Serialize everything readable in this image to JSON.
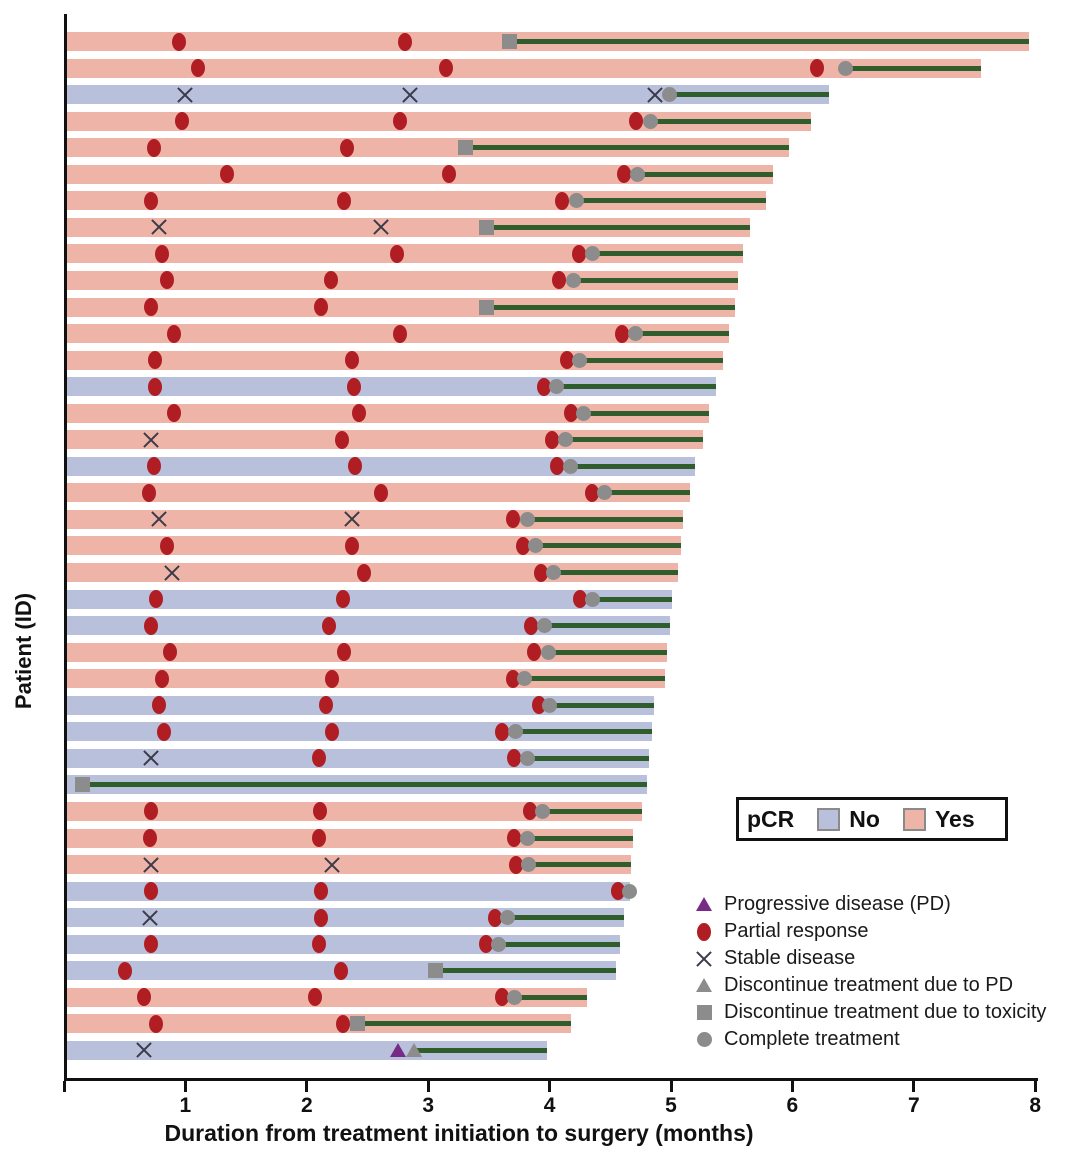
{
  "chart_data": {
    "type": "bar",
    "variant": "swimmer-plot",
    "title": "",
    "xlabel": "Duration from treatment initiation to surgery (months)",
    "ylabel": "Patient (ID)",
    "xlim": [
      0,
      8
    ],
    "xticks": [
      "1",
      "2",
      "3",
      "4",
      "5",
      "6",
      "7",
      "8"
    ],
    "grid": false,
    "pcr_legend": {
      "title": "pCR",
      "no_label": "No",
      "yes_label": "Yes"
    },
    "marker_legend": [
      {
        "type": "pd",
        "label": "Progressive disease (PD)"
      },
      {
        "type": "pr",
        "label": "Partial response"
      },
      {
        "type": "sd",
        "label": "Stable disease"
      },
      {
        "type": "dpd",
        "label": "Discontinue treatment due to PD"
      },
      {
        "type": "dtox",
        "label": "Discontinue treatment due to toxicity"
      },
      {
        "type": "ct",
        "label": "Complete treatment"
      }
    ],
    "marker_types": {
      "pd": "progressive-disease-marker",
      "pr": "partial-response-marker",
      "sd": "stable-disease-marker",
      "dpd": "discontinue-pd-marker",
      "dtox": "discontinue-toxicity-marker",
      "ct": "complete-treatment-marker"
    },
    "colors": {
      "yes": "#efb4a8",
      "no": "#b9c0dc",
      "red": "#b01e24",
      "green": "#2f5e2c",
      "gray": "#8c8c8c",
      "purple": "#762c86",
      "xcol": "#3a3a48",
      "axis": "#111111"
    },
    "rows": [
      {
        "pcr": "Yes",
        "end": 7.95,
        "line_start": 3.67,
        "markers": [
          [
            "pr",
            0.95
          ],
          [
            "pr",
            2.81
          ],
          [
            "dtox",
            3.67
          ]
        ]
      },
      {
        "pcr": "Yes",
        "end": 7.55,
        "line_start": 6.44,
        "markers": [
          [
            "pr",
            1.1
          ],
          [
            "pr",
            3.15
          ],
          [
            "pr",
            6.2
          ],
          [
            "ct",
            6.44
          ]
        ]
      },
      {
        "pcr": "No",
        "end": 6.3,
        "line_start": 4.99,
        "markers": [
          [
            "sd",
            1.0
          ],
          [
            "sd",
            2.85
          ],
          [
            "sd",
            4.87
          ],
          [
            "ct",
            4.99
          ]
        ]
      },
      {
        "pcr": "Yes",
        "end": 6.15,
        "line_start": 4.83,
        "markers": [
          [
            "pr",
            0.97
          ],
          [
            "pr",
            2.77
          ],
          [
            "pr",
            4.71
          ],
          [
            "ct",
            4.83
          ]
        ]
      },
      {
        "pcr": "Yes",
        "end": 5.97,
        "line_start": 3.31,
        "markers": [
          [
            "pr",
            0.74
          ],
          [
            "pr",
            2.33
          ],
          [
            "dtox",
            3.31
          ]
        ]
      },
      {
        "pcr": "Yes",
        "end": 5.84,
        "line_start": 4.72,
        "markers": [
          [
            "pr",
            1.34
          ],
          [
            "pr",
            3.17
          ],
          [
            "pr",
            4.61
          ],
          [
            "ct",
            4.72
          ]
        ]
      },
      {
        "pcr": "Yes",
        "end": 5.78,
        "line_start": 4.22,
        "markers": [
          [
            "pr",
            0.72
          ],
          [
            "pr",
            2.31
          ],
          [
            "pr",
            4.1
          ],
          [
            "ct",
            4.22
          ]
        ]
      },
      {
        "pcr": "Yes",
        "end": 5.65,
        "line_start": 3.48,
        "markers": [
          [
            "sd",
            0.78
          ],
          [
            "sd",
            2.61
          ],
          [
            "dtox",
            3.48
          ]
        ]
      },
      {
        "pcr": "Yes",
        "end": 5.59,
        "line_start": 4.35,
        "markers": [
          [
            "pr",
            0.81
          ],
          [
            "pr",
            2.74
          ],
          [
            "pr",
            4.24
          ],
          [
            "ct",
            4.35
          ]
        ]
      },
      {
        "pcr": "Yes",
        "end": 5.55,
        "line_start": 4.2,
        "markers": [
          [
            "pr",
            0.85
          ],
          [
            "pr",
            2.2
          ],
          [
            "pr",
            4.08
          ],
          [
            "ct",
            4.2
          ]
        ]
      },
      {
        "pcr": "Yes",
        "end": 5.53,
        "line_start": 3.48,
        "markers": [
          [
            "pr",
            0.72
          ],
          [
            "pr",
            2.12
          ],
          [
            "dtox",
            3.48
          ]
        ]
      },
      {
        "pcr": "Yes",
        "end": 5.48,
        "line_start": 4.71,
        "markers": [
          [
            "pr",
            0.91
          ],
          [
            "pr",
            2.77
          ],
          [
            "pr",
            4.6
          ],
          [
            "ct",
            4.71
          ]
        ]
      },
      {
        "pcr": "Yes",
        "end": 5.43,
        "line_start": 4.25,
        "markers": [
          [
            "pr",
            0.75
          ],
          [
            "pr",
            2.37
          ],
          [
            "pr",
            4.14
          ],
          [
            "ct",
            4.25
          ]
        ]
      },
      {
        "pcr": "No",
        "end": 5.37,
        "line_start": 4.06,
        "markers": [
          [
            "pr",
            0.75
          ],
          [
            "pr",
            2.39
          ],
          [
            "pr",
            3.95
          ],
          [
            "ct",
            4.06
          ]
        ]
      },
      {
        "pcr": "Yes",
        "end": 5.31,
        "line_start": 4.28,
        "markers": [
          [
            "pr",
            0.91
          ],
          [
            "pr",
            2.43
          ],
          [
            "pr",
            4.18
          ],
          [
            "ct",
            4.28
          ]
        ]
      },
      {
        "pcr": "Yes",
        "end": 5.26,
        "line_start": 4.13,
        "markers": [
          [
            "sd",
            0.72
          ],
          [
            "pr",
            2.29
          ],
          [
            "pr",
            4.02
          ],
          [
            "ct",
            4.13
          ]
        ]
      },
      {
        "pcr": "No",
        "end": 5.2,
        "line_start": 4.17,
        "markers": [
          [
            "pr",
            0.74
          ],
          [
            "pr",
            2.4
          ],
          [
            "pr",
            4.06
          ],
          [
            "ct",
            4.17
          ]
        ]
      },
      {
        "pcr": "Yes",
        "end": 5.16,
        "line_start": 4.45,
        "markers": [
          [
            "pr",
            0.7
          ],
          [
            "pr",
            2.61
          ],
          [
            "pr",
            4.35
          ],
          [
            "ct",
            4.45
          ]
        ]
      },
      {
        "pcr": "Yes",
        "end": 5.1,
        "line_start": 3.82,
        "markers": [
          [
            "sd",
            0.78
          ],
          [
            "sd",
            2.37
          ],
          [
            "pr",
            3.7
          ],
          [
            "ct",
            3.82
          ]
        ]
      },
      {
        "pcr": "Yes",
        "end": 5.08,
        "line_start": 3.88,
        "markers": [
          [
            "pr",
            0.85
          ],
          [
            "pr",
            2.37
          ],
          [
            "pr",
            3.78
          ],
          [
            "ct",
            3.88
          ]
        ]
      },
      {
        "pcr": "Yes",
        "end": 5.06,
        "line_start": 4.03,
        "markers": [
          [
            "sd",
            0.89
          ],
          [
            "pr",
            2.47
          ],
          [
            "pr",
            3.93
          ],
          [
            "ct",
            4.03
          ]
        ]
      },
      {
        "pcr": "No",
        "end": 5.01,
        "line_start": 4.35,
        "markers": [
          [
            "pr",
            0.76
          ],
          [
            "pr",
            2.3
          ],
          [
            "pr",
            4.25
          ],
          [
            "ct",
            4.35
          ]
        ]
      },
      {
        "pcr": "No",
        "end": 4.99,
        "line_start": 3.96,
        "markers": [
          [
            "pr",
            0.72
          ],
          [
            "pr",
            2.18
          ],
          [
            "pr",
            3.85
          ],
          [
            "ct",
            3.96
          ]
        ]
      },
      {
        "pcr": "Yes",
        "end": 4.97,
        "line_start": 3.99,
        "markers": [
          [
            "pr",
            0.87
          ],
          [
            "pr",
            2.31
          ],
          [
            "pr",
            3.87
          ],
          [
            "ct",
            3.99
          ]
        ]
      },
      {
        "pcr": "Yes",
        "end": 4.95,
        "line_start": 3.79,
        "markers": [
          [
            "pr",
            0.81
          ],
          [
            "pr",
            2.21
          ],
          [
            "pr",
            3.7
          ],
          [
            "ct",
            3.79
          ]
        ]
      },
      {
        "pcr": "No",
        "end": 4.86,
        "line_start": 4.0,
        "markers": [
          [
            "pr",
            0.78
          ],
          [
            "pr",
            2.16
          ],
          [
            "pr",
            3.91
          ],
          [
            "ct",
            4.0
          ]
        ]
      },
      {
        "pcr": "No",
        "end": 4.84,
        "line_start": 3.72,
        "markers": [
          [
            "pr",
            0.82
          ],
          [
            "pr",
            2.21
          ],
          [
            "pr",
            3.61
          ],
          [
            "ct",
            3.72
          ]
        ]
      },
      {
        "pcr": "No",
        "end": 4.82,
        "line_start": 3.82,
        "markers": [
          [
            "sd",
            0.72
          ],
          [
            "pr",
            2.1
          ],
          [
            "pr",
            3.71
          ],
          [
            "ct",
            3.82
          ]
        ]
      },
      {
        "pcr": "No",
        "end": 4.8,
        "line_start": 0.15,
        "markers": [
          [
            "dtox",
            0.15
          ]
        ]
      },
      {
        "pcr": "Yes",
        "end": 4.76,
        "line_start": 3.94,
        "markers": [
          [
            "pr",
            0.72
          ],
          [
            "pr",
            2.11
          ],
          [
            "pr",
            3.84
          ],
          [
            "ct",
            3.94
          ]
        ]
      },
      {
        "pcr": "Yes",
        "end": 4.69,
        "line_start": 3.82,
        "markers": [
          [
            "pr",
            0.71
          ],
          [
            "pr",
            2.1
          ],
          [
            "pr",
            3.71
          ],
          [
            "ct",
            3.82
          ]
        ]
      },
      {
        "pcr": "Yes",
        "end": 4.67,
        "line_start": 3.83,
        "markers": [
          [
            "sd",
            0.72
          ],
          [
            "sd",
            2.21
          ],
          [
            "pr",
            3.72
          ],
          [
            "ct",
            3.83
          ]
        ]
      },
      {
        "pcr": "No",
        "end": 4.66,
        "line_start": null,
        "markers": [
          [
            "pr",
            0.72
          ],
          [
            "pr",
            2.12
          ],
          [
            "pr",
            4.56
          ],
          [
            "ct",
            4.66
          ]
        ]
      },
      {
        "pcr": "No",
        "end": 4.61,
        "line_start": 3.65,
        "markers": [
          [
            "sd",
            0.71
          ],
          [
            "pr",
            2.12
          ],
          [
            "pr",
            3.55
          ],
          [
            "ct",
            3.65
          ]
        ]
      },
      {
        "pcr": "No",
        "end": 4.58,
        "line_start": 3.58,
        "markers": [
          [
            "pr",
            0.72
          ],
          [
            "pr",
            2.1
          ],
          [
            "pr",
            3.48
          ],
          [
            "ct",
            3.58
          ]
        ]
      },
      {
        "pcr": "No",
        "end": 4.55,
        "line_start": 3.06,
        "markers": [
          [
            "pr",
            0.5
          ],
          [
            "pr",
            2.28
          ],
          [
            "dtox",
            3.06
          ]
        ]
      },
      {
        "pcr": "Yes",
        "end": 4.31,
        "line_start": 3.71,
        "markers": [
          [
            "pr",
            0.66
          ],
          [
            "pr",
            2.07
          ],
          [
            "pr",
            3.61
          ],
          [
            "ct",
            3.71
          ]
        ]
      },
      {
        "pcr": "Yes",
        "end": 4.18,
        "line_start": 2.42,
        "markers": [
          [
            "pr",
            0.76
          ],
          [
            "pr",
            2.3
          ],
          [
            "dtox",
            2.42
          ]
        ]
      },
      {
        "pcr": "No",
        "end": 3.98,
        "line_start": 2.88,
        "markers": [
          [
            "sd",
            0.66
          ],
          [
            "pd",
            2.75
          ],
          [
            "dpd",
            2.88
          ]
        ]
      }
    ]
  }
}
